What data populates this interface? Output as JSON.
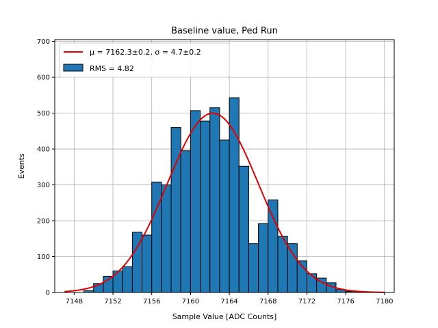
{
  "chart_data": {
    "type": "bar",
    "title": "Baseline value, Ped Run",
    "xlabel": "Sample Value [ADC Counts]",
    "ylabel": "Events",
    "xlim": [
      7146,
      7181
    ],
    "ylim": [
      0,
      705
    ],
    "xticks": [
      7148,
      7152,
      7156,
      7160,
      7164,
      7168,
      7172,
      7176,
      7180
    ],
    "yticks": [
      0,
      100,
      200,
      300,
      400,
      500,
      600,
      700
    ],
    "grid": true,
    "legend_position": "top-left",
    "bar_color": "#1f77b4",
    "bar_edge_color": "#000000",
    "fit_color": "#e00000",
    "bins": [
      {
        "x0": 7149.0,
        "x1": 7150.0,
        "value": 5
      },
      {
        "x0": 7150.0,
        "x1": 7151.0,
        "value": 25
      },
      {
        "x0": 7151.0,
        "x1": 7152.0,
        "value": 45
      },
      {
        "x0": 7152.0,
        "x1": 7153.0,
        "value": 60
      },
      {
        "x0": 7153.0,
        "x1": 7154.0,
        "value": 72
      },
      {
        "x0": 7154.0,
        "x1": 7155.0,
        "value": 168
      },
      {
        "x0": 7155.0,
        "x1": 7156.0,
        "value": 160
      },
      {
        "x0": 7156.0,
        "x1": 7157.0,
        "value": 308
      },
      {
        "x0": 7157.0,
        "x1": 7158.0,
        "value": 300
      },
      {
        "x0": 7158.0,
        "x1": 7159.0,
        "value": 460
      },
      {
        "x0": 7159.0,
        "x1": 7160.0,
        "value": 395
      },
      {
        "x0": 7160.0,
        "x1": 7161.0,
        "value": 507
      },
      {
        "x0": 7161.0,
        "x1": 7162.0,
        "value": 478
      },
      {
        "x0": 7162.0,
        "x1": 7163.0,
        "value": 515
      },
      {
        "x0": 7163.0,
        "x1": 7164.0,
        "value": 425
      },
      {
        "x0": 7164.0,
        "x1": 7165.0,
        "value": 543
      },
      {
        "x0": 7165.0,
        "x1": 7166.0,
        "value": 352
      },
      {
        "x0": 7166.0,
        "x1": 7167.0,
        "value": 136
      },
      {
        "x0": 7167.0,
        "x1": 7168.0,
        "value": 192
      },
      {
        "x0": 7168.0,
        "x1": 7169.0,
        "value": 258
      },
      {
        "x0": 7169.0,
        "x1": 7170.0,
        "value": 157
      },
      {
        "x0": 7170.0,
        "x1": 7171.0,
        "value": 136
      },
      {
        "x0": 7171.0,
        "x1": 7172.0,
        "value": 88
      },
      {
        "x0": 7172.0,
        "x1": 7173.0,
        "value": 52
      },
      {
        "x0": 7173.0,
        "x1": 7174.0,
        "value": 40
      },
      {
        "x0": 7174.0,
        "x1": 7175.0,
        "value": 27
      },
      {
        "x0": 7175.0,
        "x1": 7176.0,
        "value": 8
      },
      {
        "x0": 7176.0,
        "x1": 7177.0,
        "value": 3
      },
      {
        "x0": 7177.0,
        "x1": 7178.0,
        "value": 1
      }
    ],
    "fit": {
      "mu": 7162.3,
      "sigma": 4.7,
      "amplitude": 500,
      "x_range": [
        7147,
        7180
      ]
    },
    "legend": [
      {
        "kind": "line",
        "label": "μ = 7162.3±0.2, σ = 4.7±0.2"
      },
      {
        "kind": "patch",
        "label": "RMS = 4.82"
      }
    ]
  }
}
